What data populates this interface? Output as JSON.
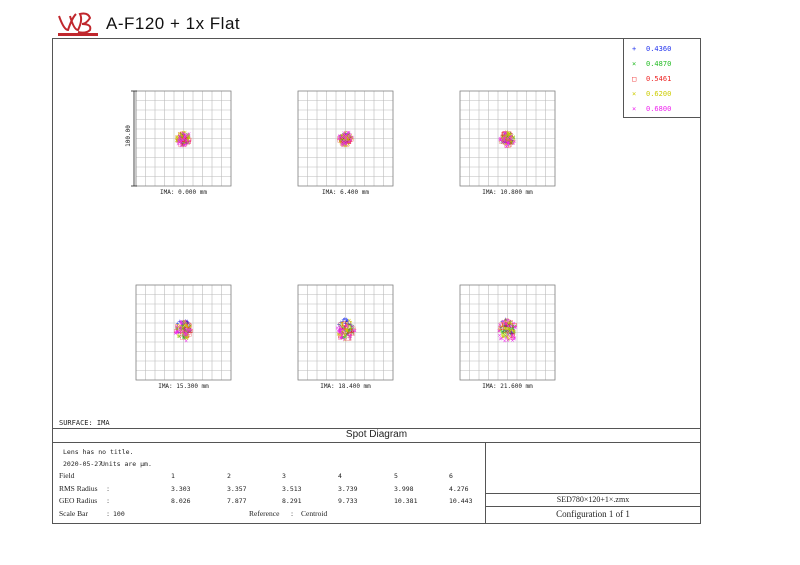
{
  "header": {
    "title": "A-F120 + 1x Flat"
  },
  "legend": [
    {
      "label": "0.4360",
      "marker": "+",
      "color": "#2233ee"
    },
    {
      "label": "0.4870",
      "marker": "×",
      "color": "#22bb22"
    },
    {
      "label": "0.5461",
      "marker": "□",
      "color": "#ee2222"
    },
    {
      "label": "0.6200",
      "marker": "×",
      "color": "#cccc00"
    },
    {
      "label": "0.6800",
      "marker": "×",
      "color": "#ee22ee"
    }
  ],
  "surface_label": "SURFACE: IMA",
  "diagram_title": "Spot Diagram",
  "info": {
    "lens_title": "Lens has no title.",
    "date": "2020-05-27",
    "units": "Units are µm.",
    "field_label": "Field",
    "fields": [
      "1",
      "2",
      "3",
      "4",
      "5",
      "6"
    ],
    "rms_label": "RMS Radius",
    "rms": [
      "3.303",
      "3.357",
      "3.513",
      "3.739",
      "3.998",
      "4.276"
    ],
    "geo_label": "GEO Radius",
    "geo": [
      "8.026",
      "7.877",
      "8.291",
      "9.733",
      "10.381",
      "10.443"
    ],
    "scale_label": "Scale Bar",
    "scale_value": "100",
    "reference_label": "Reference",
    "reference_value": "Centroid",
    "colon": ":"
  },
  "file_name": "SED780×120+1×.zmx",
  "configuration": "Configuration 1 of 1",
  "chart_data": {
    "type": "scatter",
    "title": "Spot Diagram",
    "scale_bar_label": "100.00",
    "grid": true,
    "panels": [
      {
        "label": "IMA: 0.000 mm",
        "field": 1,
        "rms_radius": 3.303,
        "geo_radius": 8.026
      },
      {
        "label": "IMA: 6.400 mm",
        "field": 2,
        "rms_radius": 3.357,
        "geo_radius": 7.877
      },
      {
        "label": "IMA: 10.800 mm",
        "field": 3,
        "rms_radius": 3.513,
        "geo_radius": 8.291
      },
      {
        "label": "IMA: 15.300 mm",
        "field": 4,
        "rms_radius": 3.739,
        "geo_radius": 9.733
      },
      {
        "label": "IMA: 18.400 mm",
        "field": 5,
        "rms_radius": 3.998,
        "geo_radius": 10.381
      },
      {
        "label": "IMA: 21.600 mm",
        "field": 6,
        "rms_radius": 4.276,
        "geo_radius": 10.443
      }
    ],
    "series": [
      {
        "name": "0.4360",
        "color": "#2233ee"
      },
      {
        "name": "0.4870",
        "color": "#22bb22"
      },
      {
        "name": "0.5461",
        "color": "#ee2222"
      },
      {
        "name": "0.6200",
        "color": "#cccc00"
      },
      {
        "name": "0.6800",
        "color": "#ee22ee"
      }
    ]
  }
}
